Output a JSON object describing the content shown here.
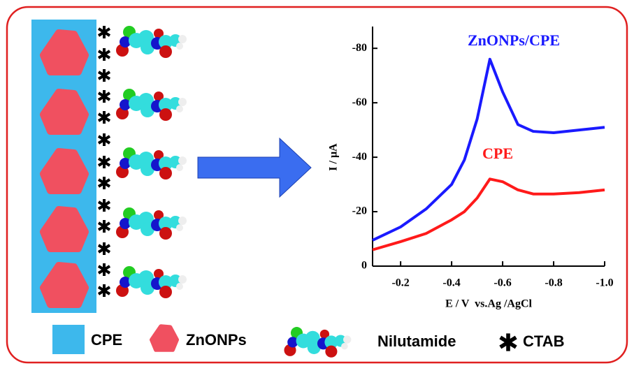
{
  "legend": [
    "CPE",
    "ZnONPs",
    "Nilutamide",
    "CTAB"
  ],
  "chart_data": {
    "type": "line",
    "xlabel": "E / V  vs.Ag /AgCl",
    "ylabel": "I / µA",
    "x": [
      -0.09,
      -0.2,
      -0.3,
      -0.4,
      -0.45,
      -0.5,
      -0.55,
      -0.6,
      -0.66,
      -0.72,
      -0.8,
      -0.9,
      -1.0
    ],
    "series": [
      {
        "name": "ZnONPs/CPE",
        "color": "#1a1aff",
        "values": [
          -9.5,
          -14.4,
          -21,
          -30,
          -39,
          -54,
          -76,
          -64,
          -52,
          -49.5,
          -49,
          -50,
          -51
        ]
      },
      {
        "name": "CPE",
        "color": "#ff1a1a",
        "values": [
          -6,
          -9,
          -12,
          -17,
          -20,
          -25,
          -32,
          -31,
          -28,
          -26.5,
          -26.5,
          -27,
          -28
        ]
      }
    ],
    "xlim": [
      -0.09,
      -1.0
    ],
    "xticks": [
      -0.2,
      -0.4,
      -0.6,
      -0.8,
      {
        "value": -1.0,
        "label": "-1.0"
      }
    ],
    "ylim": [
      0,
      -88
    ],
    "yticks": [
      0,
      -20,
      -40,
      -60,
      -80
    ]
  }
}
